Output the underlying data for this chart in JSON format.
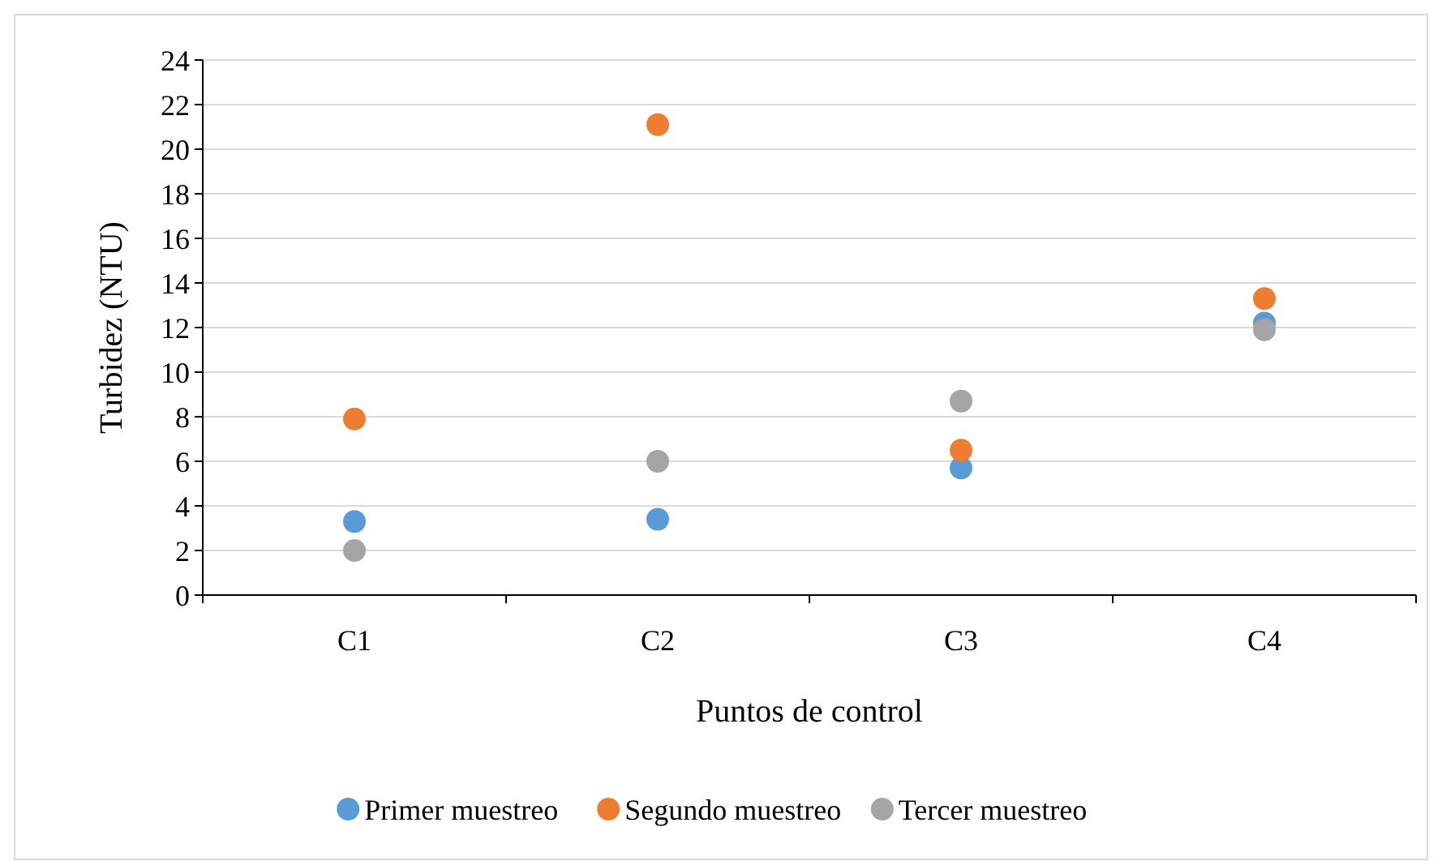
{
  "chart_data": {
    "type": "scatter",
    "xlabel": "Puntos de control",
    "ylabel": "Turbidez (NTU)",
    "categories": [
      "C1",
      "C2",
      "C3",
      "C4"
    ],
    "ylim": [
      0,
      24
    ],
    "yticks": [
      0,
      2,
      4,
      6,
      8,
      10,
      12,
      14,
      16,
      18,
      20,
      22,
      24
    ],
    "grid": "y",
    "legend": "bottom",
    "marker": "circle",
    "series": [
      {
        "name": "Primer muestreo",
        "color": "#5b9bd5",
        "values": [
          3.3,
          3.4,
          5.7,
          12.2
        ]
      },
      {
        "name": "Segundo muestreo",
        "color": "#ed7d31",
        "values": [
          7.9,
          21.1,
          6.5,
          13.3
        ]
      },
      {
        "name": "Tercer muestreo",
        "color": "#a5a5a5",
        "values": [
          2.0,
          6.0,
          8.7,
          11.9
        ]
      }
    ]
  }
}
